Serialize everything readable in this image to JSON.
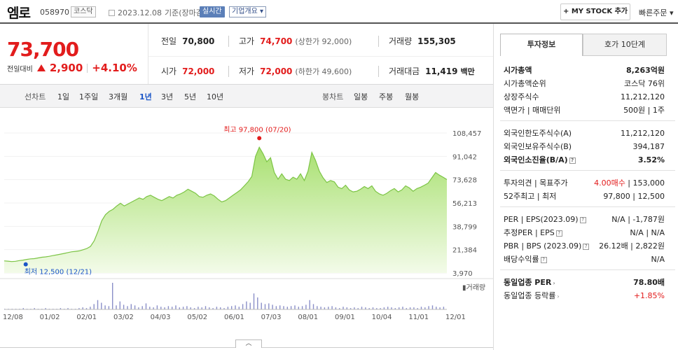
{
  "header": {
    "name": "엠로",
    "code": "058970",
    "market": "코스닥",
    "date_text": "2023.12.08",
    "basis": "기준(장마감)",
    "realtime": "실시간",
    "corp_info": "기업개요 ▾",
    "mystock": "+ MY STOCK 추가",
    "quick_order": "빠른주문 ▾"
  },
  "price": {
    "current": "73,700",
    "change_label": "전일대비",
    "change_amount": "2,900",
    "change_pct": "+4.10%"
  },
  "stats": {
    "prev_label": "전일",
    "prev": "70,800",
    "high_label": "고가",
    "high": "74,700",
    "upper_limit": "(상한가 92,000)",
    "volume_label": "거래량",
    "volume": "155,305",
    "open_label": "시가",
    "open": "72,000",
    "low_label": "저가",
    "low": "72,000",
    "lower_limit": "(하한가 49,600)",
    "amount_label": "거래대금",
    "amount": "11,419",
    "amount_unit": "백만"
  },
  "range_tabs": {
    "line_chart": "선차트",
    "items": [
      "1일",
      "1주일",
      "3개월",
      "1년",
      "3년",
      "5년",
      "10년"
    ],
    "active": "1년",
    "candle_chart": "봉차트",
    "candle_items": [
      "일봉",
      "주봉",
      "월봉"
    ]
  },
  "chart_data": {
    "type": "area",
    "y_ticks": [
      "108,457",
      "91,042",
      "73,628",
      "56,213",
      "38,799",
      "21,384",
      "3,970"
    ],
    "ylim": [
      3970,
      108457
    ],
    "x_ticks": [
      "12/08",
      "01/02",
      "02/01",
      "03/02",
      "04/03",
      "05/02",
      "06/01",
      "07/03",
      "08/01",
      "09/01",
      "10/04",
      "11/01",
      "12/01"
    ],
    "high_label": "최고 97,800 (07/20)",
    "low_label": "최저 12,500 (12/21)",
    "volume_label": "거래량",
    "values": [
      13000,
      12800,
      12500,
      12700,
      13200,
      13600,
      14100,
      14500,
      14700,
      15200,
      15700,
      16000,
      16400,
      17000,
      17500,
      18000,
      18600,
      19200,
      19800,
      20100,
      20500,
      21300,
      22200,
      23800,
      28000,
      35000,
      43000,
      47500,
      50000,
      51500,
      54000,
      56000,
      54000,
      55500,
      57000,
      58500,
      60000,
      59000,
      61000,
      62000,
      60500,
      59000,
      58000,
      59500,
      61000,
      60000,
      62000,
      63000,
      64500,
      66500,
      65000,
      63500,
      61000,
      60500,
      62000,
      63000,
      61500,
      59000,
      57000,
      58000,
      60000,
      62000,
      64000,
      66000,
      69000,
      72000,
      76000,
      91000,
      97800,
      93000,
      87000,
      90000,
      79000,
      74000,
      78000,
      74000,
      73000,
      75500,
      74000,
      78000,
      73000,
      80000,
      94000,
      88000,
      80000,
      75000,
      71500,
      73000,
      72000,
      68000,
      67000,
      69500,
      66000,
      64500,
      65000,
      66500,
      68500,
      67000,
      69000,
      65000,
      63000,
      62000,
      63500,
      65500,
      67000,
      64500,
      66000,
      69000,
      67500,
      65000,
      67000,
      68000,
      69500,
      71000,
      75000,
      79000,
      77000,
      75500,
      73700
    ],
    "volumes": [
      1,
      1,
      1,
      1,
      1,
      2,
      1,
      1,
      2,
      1,
      1,
      2,
      1,
      1,
      1,
      2,
      1,
      2,
      1,
      1,
      2,
      3,
      2,
      4,
      8,
      14,
      10,
      6,
      5,
      40,
      6,
      12,
      7,
      5,
      8,
      6,
      3,
      5,
      9,
      4,
      3,
      6,
      4,
      3,
      5,
      4,
      6,
      3,
      4,
      5,
      3,
      2,
      4,
      3,
      5,
      3,
      2,
      4,
      3,
      2,
      4,
      5,
      6,
      4,
      8,
      12,
      10,
      24,
      18,
      10,
      8,
      9,
      7,
      5,
      6,
      5,
      4,
      5,
      6,
      4,
      5,
      7,
      14,
      8,
      5,
      4,
      3,
      4,
      5,
      3,
      2,
      4,
      3,
      2,
      3,
      2,
      4,
      3,
      2,
      3,
      2,
      2,
      3,
      4,
      3,
      2,
      3,
      4,
      2,
      3,
      3,
      2,
      4,
      3,
      5,
      6,
      4,
      3,
      4
    ]
  },
  "right": {
    "tab_active": "투자정보",
    "tab_inactive": "호가 10단계",
    "rows": [
      {
        "k": "시가총액",
        "v": "8,263억원",
        "bold": true
      },
      {
        "k": "시가총액순위",
        "v": "코스닥 76위"
      },
      {
        "k": "상장주식수",
        "v": "11,212,120"
      },
      {
        "k": "액면가 | 매매단위",
        "v": "500원 | 1주"
      },
      {
        "k": "외국인한도주식수(A)",
        "v": "11,212,120"
      },
      {
        "k": "외국인보유주식수(B)",
        "v": "394,187"
      },
      {
        "k": "외국인소진율(B/A)",
        "v": "3.52%",
        "bold": true
      },
      {
        "k": "투자의견 | 목표주가",
        "v": "4.00매수 | 153,000"
      },
      {
        "k": "52주최고 | 최저",
        "v": "97,800 | 12,500"
      },
      {
        "k": "PER | EPS(2023.09)",
        "v": "N/A | -1,787원"
      },
      {
        "k": "추정PER | EPS",
        "v": "N/A | N/A"
      },
      {
        "k": "PBR | BPS (2023.09)",
        "v": "26.12배 | 2,822원"
      },
      {
        "k": "배당수익률",
        "v": "N/A"
      },
      {
        "k": "동일업종 PER",
        "v": "78.80배",
        "bold": true
      },
      {
        "k": "동일업종 등락률",
        "v": "+1.85%"
      }
    ],
    "opinion_red": "4.00매수"
  },
  "expand_label": "︿"
}
